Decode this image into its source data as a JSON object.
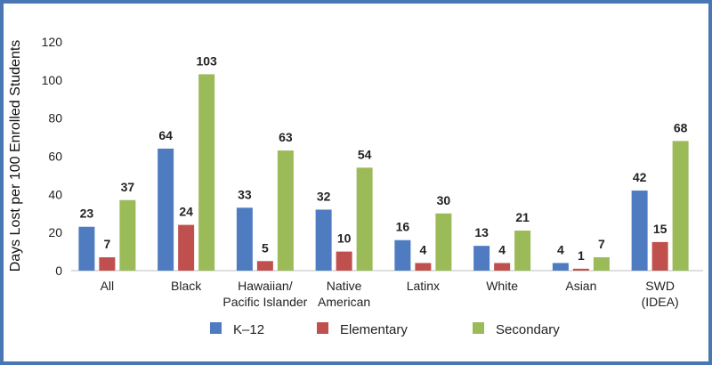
{
  "chart_data": {
    "type": "bar",
    "ylabel": "Days Lost per 100 Enrolled Students",
    "ylim": [
      0,
      120
    ],
    "yticks": [
      0,
      20,
      40,
      60,
      80,
      100,
      120
    ],
    "grid": false,
    "legend_position": "bottom",
    "categories": [
      [
        "All"
      ],
      [
        "Black"
      ],
      [
        "Hawaiian/",
        "Pacific Islander"
      ],
      [
        "Native",
        "American"
      ],
      [
        "Latinx"
      ],
      [
        "White"
      ],
      [
        "Asian"
      ],
      [
        "SWD",
        "(IDEA)"
      ]
    ],
    "series": [
      {
        "name": "K–12",
        "color": "#4f7cc0",
        "values": [
          23,
          64,
          33,
          32,
          16,
          13,
          4,
          42
        ]
      },
      {
        "name": "Elementary",
        "color": "#c0504d",
        "values": [
          7,
          24,
          5,
          10,
          4,
          4,
          1,
          15
        ]
      },
      {
        "name": "Secondary",
        "color": "#9bbb59",
        "values": [
          37,
          103,
          63,
          54,
          30,
          21,
          7,
          68
        ]
      }
    ]
  }
}
